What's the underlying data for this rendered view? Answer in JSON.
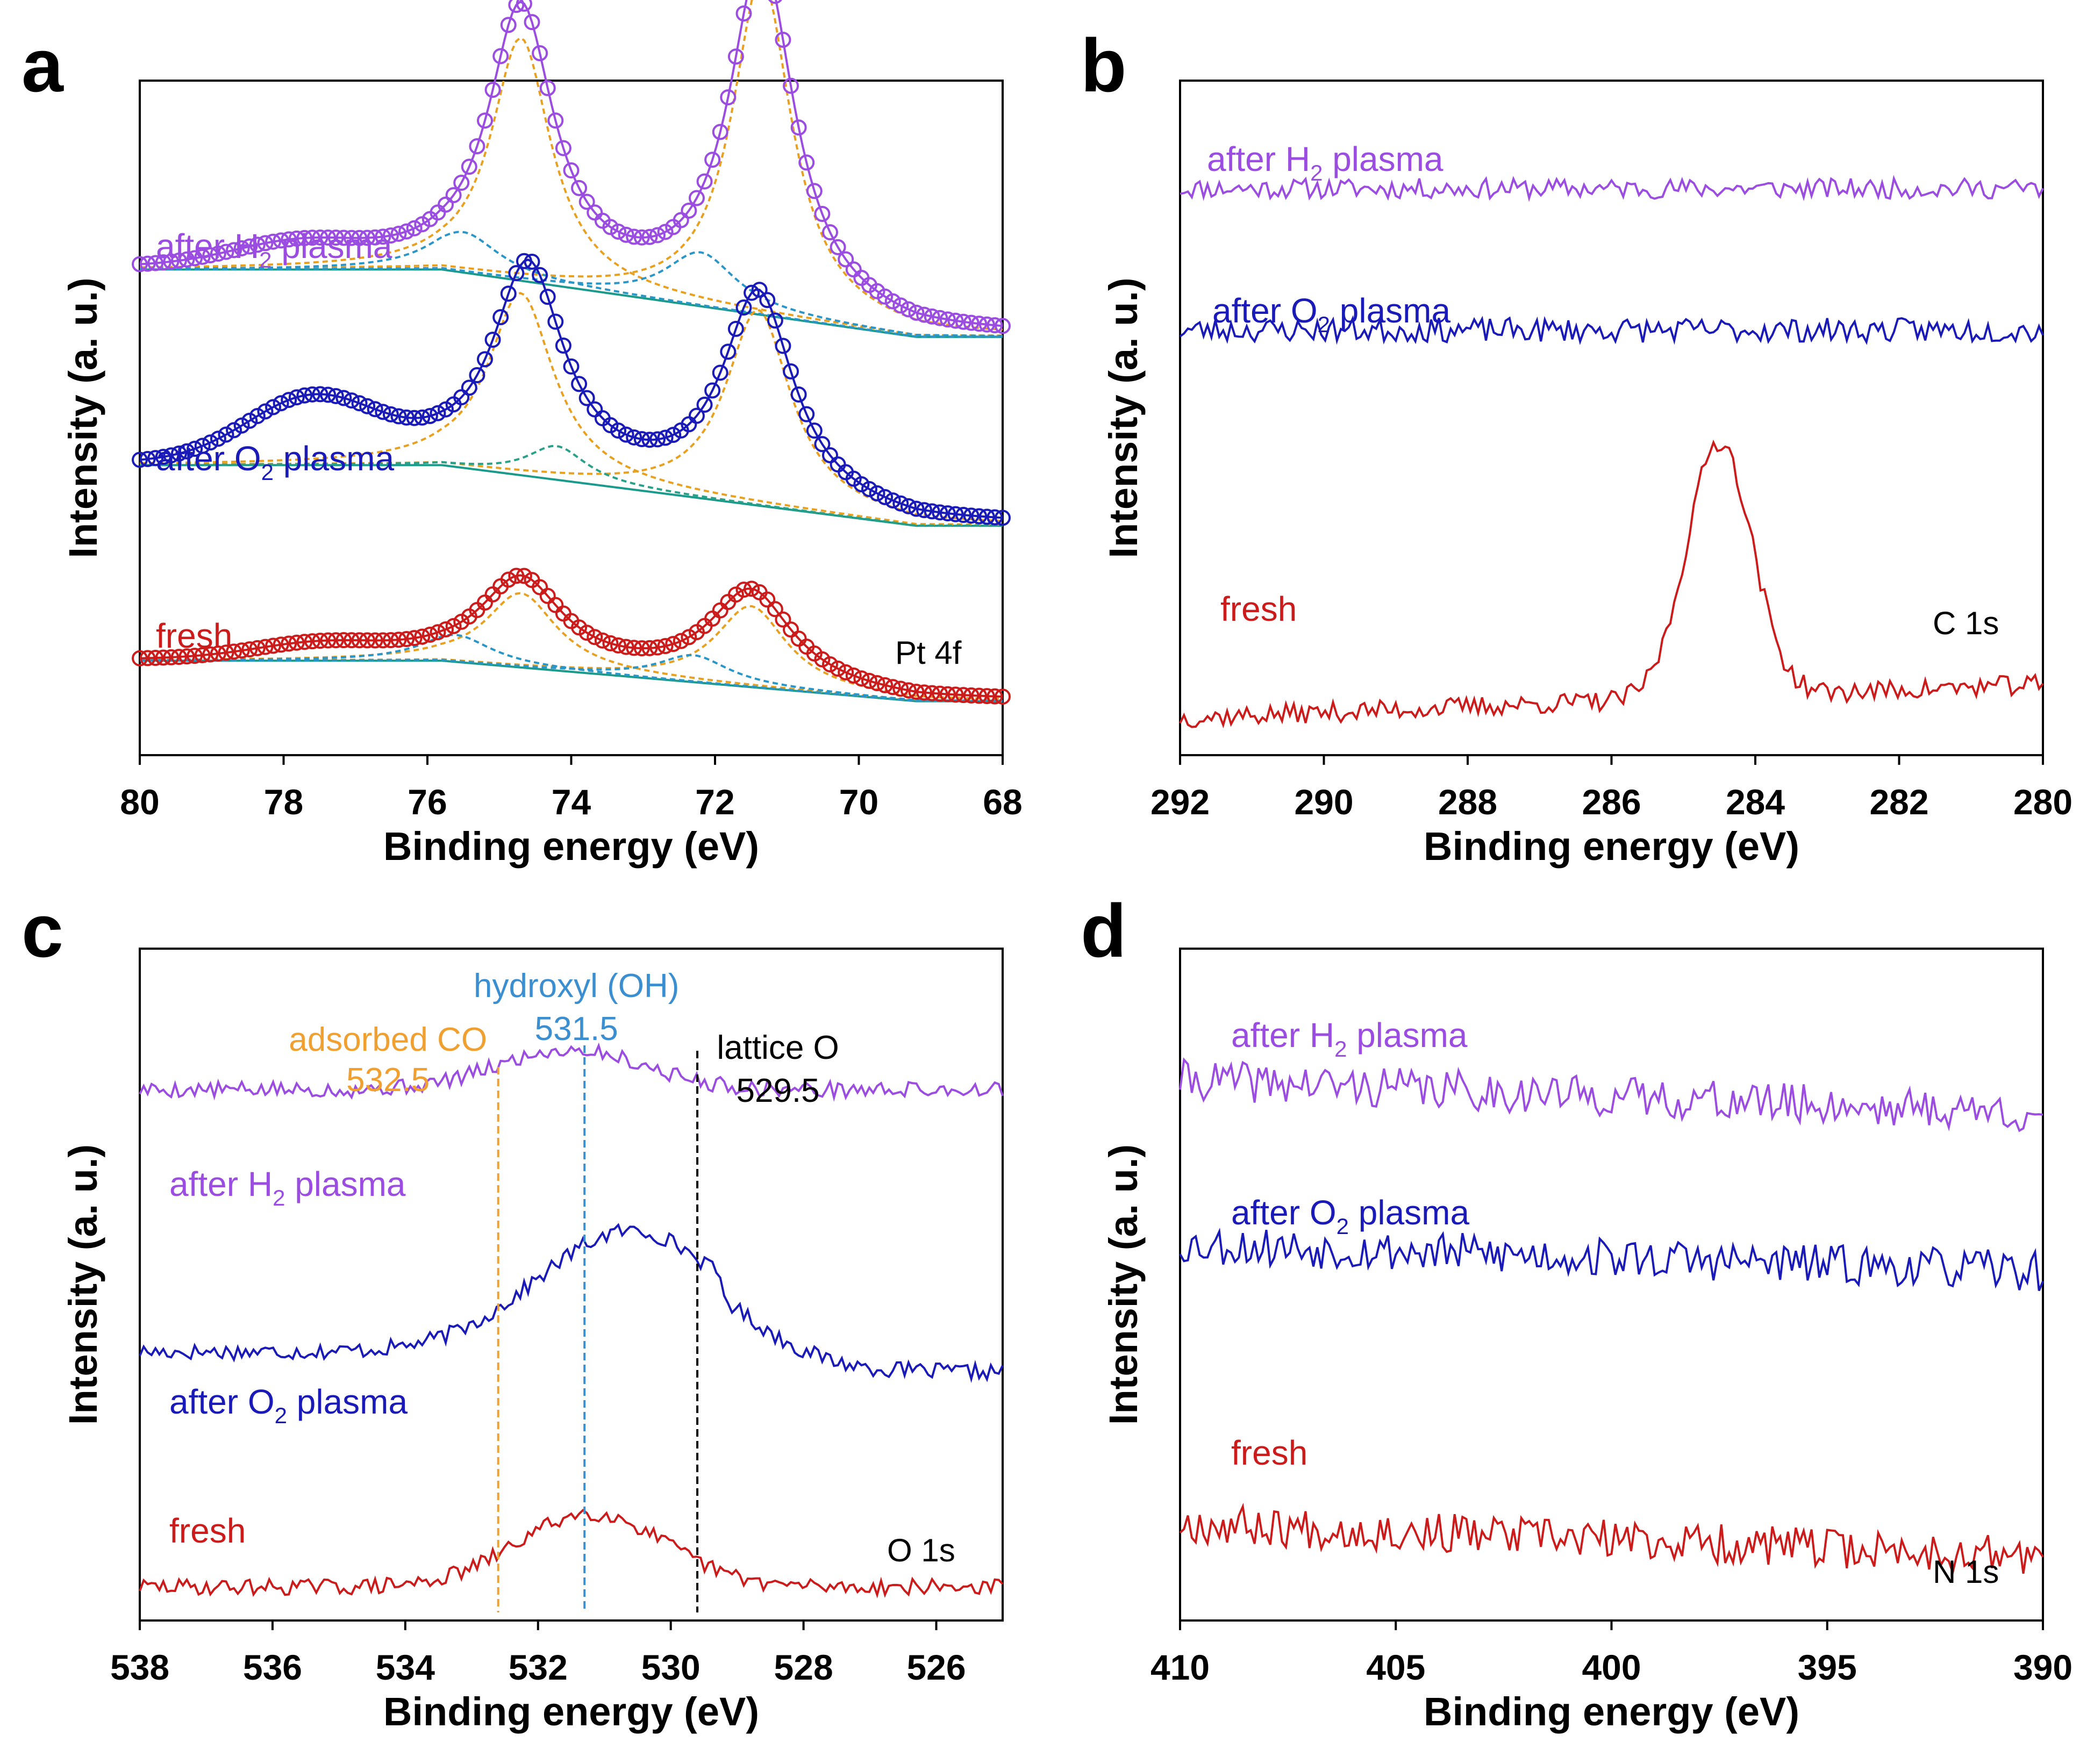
{
  "colors": {
    "h2": "#9a4de0",
    "o2": "#1a1ab8",
    "fresh": "#cc1b1b",
    "fit_orange": "#e8a020",
    "fit_blue": "#2a96c8",
    "fit_green": "#2aa088",
    "background": "#1a9a8a",
    "co_line": "#f0a030",
    "oh_line": "#3b8fd0",
    "lattice_line": "#000000"
  },
  "chart_data": [
    {
      "panel": "a",
      "type": "scatter",
      "core_level": "Pt 4f",
      "xlabel": "Binding energy (eV)",
      "ylabel": "Intensity (a. u.)",
      "xlim": [
        80,
        68
      ],
      "xticks": [
        "80",
        "78",
        "76",
        "74",
        "72",
        "70",
        "68"
      ],
      "tick_values": [
        80,
        78,
        76,
        74,
        72,
        70,
        68
      ],
      "ylim": [
        0,
        1
      ],
      "series": [
        {
          "key": "h2",
          "name": "after H",
          "sub": "2",
          "suffix": " plasma",
          "offset": 0.62,
          "peak1": {
            "e": 74.7,
            "h": 0.4,
            "w": 0.55
          },
          "peak2": {
            "e": 71.35,
            "h": 0.52,
            "w": 0.55
          },
          "sat": {
            "e": 77.8,
            "h": 0.03
          },
          "bg_high": 0.1,
          "bg_low": 0.0,
          "fits": [
            {
              "e": 74.7,
              "h": 0.36,
              "w": 0.5,
              "color": "fit_orange"
            },
            {
              "e": 71.35,
              "h": 0.5,
              "w": 0.5,
              "color": "fit_orange"
            },
            {
              "e": 75.5,
              "h": 0.06,
              "w": 0.6,
              "color": "fit_blue"
            },
            {
              "e": 72.2,
              "h": 0.08,
              "w": 0.6,
              "color": "fit_blue"
            }
          ]
        },
        {
          "key": "o2",
          "name": "after O",
          "sub": "2",
          "suffix": " plasma",
          "offset": 0.34,
          "peak1": {
            "e": 74.6,
            "h": 0.31,
            "w": 0.6
          },
          "peak2": {
            "e": 71.4,
            "h": 0.31,
            "w": 0.6
          },
          "sat": {
            "e": 77.6,
            "h": 0.09
          },
          "bg_high": 0.09,
          "bg_low": 0.0,
          "fits": [
            {
              "e": 74.7,
              "h": 0.27,
              "w": 0.55,
              "color": "fit_orange"
            },
            {
              "e": 71.4,
              "h": 0.29,
              "w": 0.55,
              "color": "fit_orange"
            },
            {
              "e": 74.2,
              "h": 0.05,
              "w": 0.5,
              "color": "fit_green"
            }
          ]
        },
        {
          "key": "fresh",
          "name": "fresh",
          "sub": "",
          "suffix": "",
          "offset": 0.08,
          "peak1": {
            "e": 74.7,
            "h": 0.13,
            "w": 0.7
          },
          "peak2": {
            "e": 71.5,
            "h": 0.14,
            "w": 0.7
          },
          "sat": {
            "e": 77.5,
            "h": 0.02
          },
          "bg_high": 0.06,
          "bg_low": 0.0,
          "fits": [
            {
              "e": 74.7,
              "h": 0.11,
              "w": 0.6,
              "color": "fit_orange"
            },
            {
              "e": 71.5,
              "h": 0.12,
              "w": 0.6,
              "color": "fit_orange"
            },
            {
              "e": 75.6,
              "h": 0.04,
              "w": 0.6,
              "color": "fit_blue"
            },
            {
              "e": 72.3,
              "h": 0.04,
              "w": 0.6,
              "color": "fit_blue"
            }
          ]
        }
      ]
    },
    {
      "panel": "b",
      "type": "line",
      "core_level": "C 1s",
      "xlabel": "Binding energy (eV)",
      "ylabel": "Intensity (a. u.)",
      "xlim": [
        292,
        280
      ],
      "xticks": [
        "292",
        "290",
        "288",
        "286",
        "284",
        "282",
        "280"
      ],
      "tick_values": [
        292,
        290,
        288,
        286,
        284,
        282,
        280
      ],
      "ylim": [
        0,
        1
      ],
      "series": [
        {
          "key": "h2",
          "name": "after H",
          "sub": "2",
          "suffix": " plasma",
          "offset": 0.84,
          "noise": 0.015,
          "seed": 11,
          "peaks": []
        },
        {
          "key": "o2",
          "name": "after O",
          "sub": "2",
          "suffix": " plasma",
          "offset": 0.63,
          "noise": 0.018,
          "seed": 23,
          "peaks": []
        },
        {
          "key": "fresh",
          "name": "fresh",
          "sub": "",
          "suffix": "",
          "offset": 0.08,
          "noise": 0.015,
          "seed": 37,
          "peaks": [
            {
              "e": 284.5,
              "h": 0.38,
              "w": 0.45
            }
          ],
          "bg_slope": 0.05
        }
      ]
    },
    {
      "panel": "c",
      "type": "line",
      "core_level": "O 1s",
      "xlabel": "Binding energy (eV)",
      "ylabel": "Intensity (a. u.)",
      "xlim": [
        538,
        525
      ],
      "xticks": [
        "538",
        "536",
        "534",
        "532",
        "530",
        "528",
        "526"
      ],
      "tick_values": [
        538,
        536,
        534,
        532,
        530,
        528,
        526
      ],
      "ylim": [
        0,
        1
      ],
      "reference_lines": [
        {
          "energy": 532.6,
          "label": "adsorbed CO",
          "value": "532.5",
          "color": "co_line"
        },
        {
          "energy": 531.3,
          "label": "hydroxyl (OH)",
          "value": "531.5",
          "color": "oh_line"
        },
        {
          "energy": 529.6,
          "label": "lattice O",
          "value": "529.5",
          "color": "lattice_line"
        }
      ],
      "series": [
        {
          "key": "h2",
          "name": "after H",
          "sub": "2",
          "suffix": " plasma",
          "offset": 0.79,
          "noise": 0.012,
          "seed": 5,
          "peaks": [
            {
              "e": 531.5,
              "h": 0.06,
              "w": 1.1
            }
          ]
        },
        {
          "key": "o2",
          "name": "after O",
          "sub": "2",
          "suffix": " plasma",
          "offset": 0.4,
          "noise": 0.012,
          "seed": 17,
          "peaks": [
            {
              "e": 530.6,
              "h": 0.18,
              "w": 1.4
            }
          ],
          "step": {
            "e": 529.2,
            "h": -0.03
          }
        },
        {
          "key": "fresh",
          "name": "fresh",
          "sub": "",
          "suffix": "",
          "offset": 0.05,
          "noise": 0.012,
          "seed": 29,
          "peaks": [
            {
              "e": 531.2,
              "h": 0.11,
              "w": 1.1
            }
          ]
        }
      ]
    },
    {
      "panel": "d",
      "type": "line",
      "core_level": "N 1s",
      "xlabel": "Binding energy (eV)",
      "ylabel": "Intensity (a. u.)",
      "xlim": [
        410,
        390
      ],
      "xticks": [
        "410",
        "405",
        "400",
        "395",
        "390"
      ],
      "tick_values": [
        410,
        405,
        400,
        395,
        390
      ],
      "ylim": [
        0,
        1
      ],
      "series": [
        {
          "key": "h2",
          "name": "after H",
          "sub": "2",
          "suffix": " plasma",
          "offset": 0.78,
          "noise": 0.03,
          "seed": 41,
          "peaks": [],
          "bg_slope": -0.05
        },
        {
          "key": "o2",
          "name": "after O",
          "sub": "2",
          "suffix": " plasma",
          "offset": 0.54,
          "noise": 0.03,
          "seed": 53,
          "peaks": [],
          "bg_slope": -0.04
        },
        {
          "key": "fresh",
          "name": "fresh",
          "sub": "",
          "suffix": "",
          "offset": 0.12,
          "noise": 0.03,
          "seed": 67,
          "peaks": [],
          "bg_slope": -0.05
        }
      ]
    }
  ]
}
